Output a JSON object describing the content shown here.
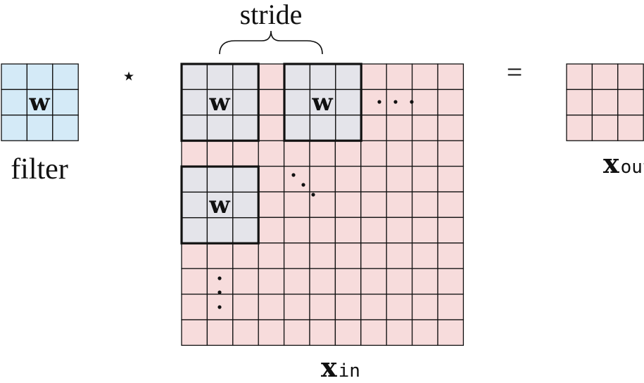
{
  "filter": {
    "label": "filter",
    "symbol": "w",
    "cells": 3
  },
  "operator": "⋆",
  "equals": "=",
  "input": {
    "symbol": "x",
    "subscript": "in",
    "cells": 11,
    "windows_symbol": "w",
    "stride_label": "stride"
  },
  "output": {
    "symbol": "x",
    "subscript": "out",
    "cells": 3
  },
  "colors": {
    "filter_fill": "#d4eaf7",
    "input_fill": "#f7dcdc",
    "window_fill": "#e4e4ea",
    "output_fill": "#f7dcdc",
    "stroke": "#111111"
  }
}
